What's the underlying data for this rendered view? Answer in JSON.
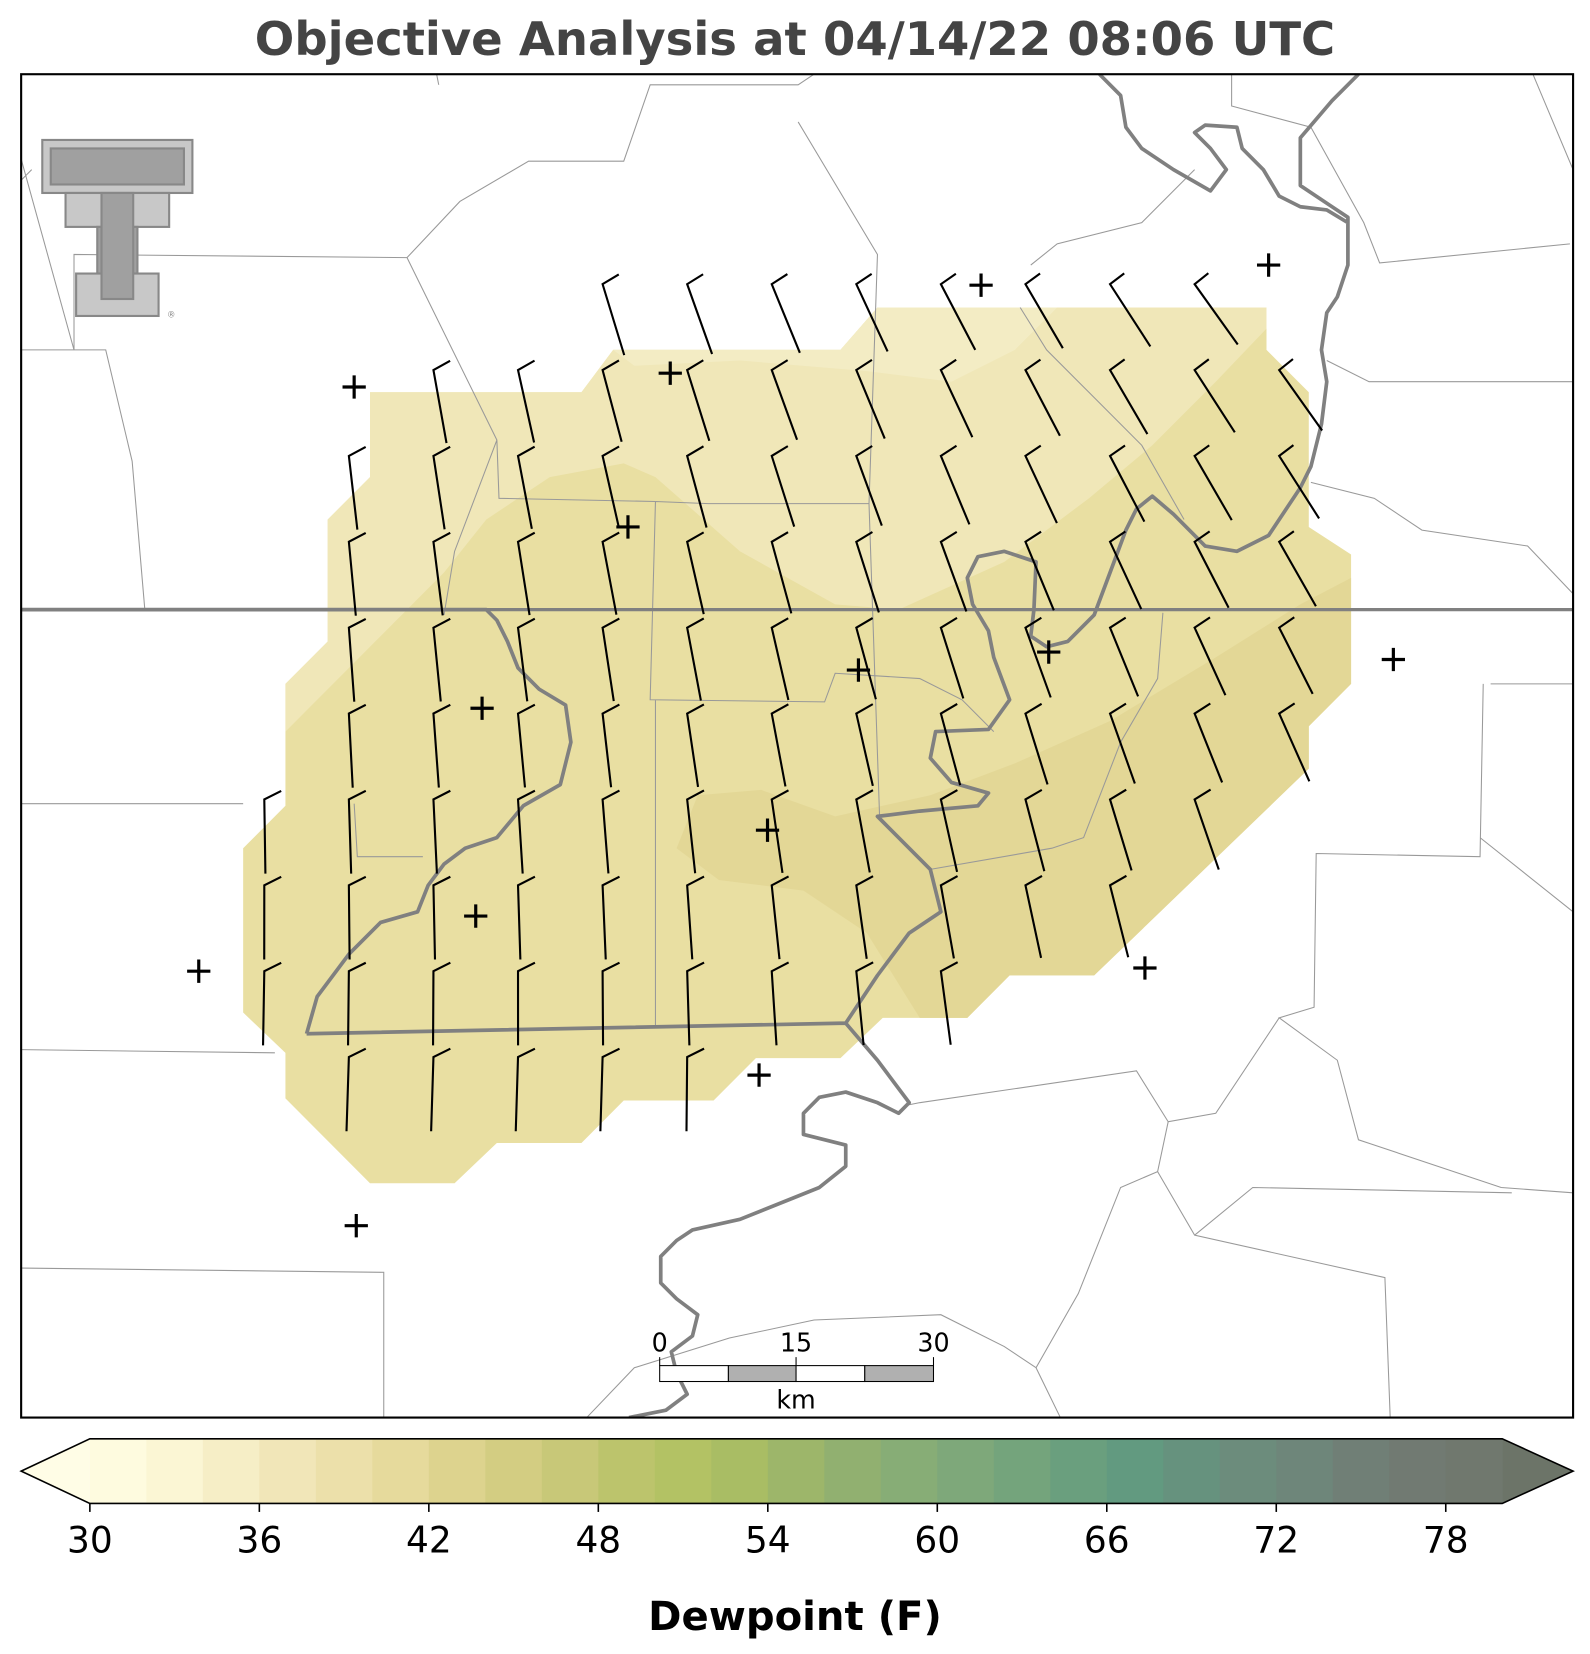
{
  "title": "Objective Analysis at 04/14/22 08:06 UTC",
  "colorbar": {
    "label": "Dewpoint (F)",
    "vmin": 30,
    "vmax": 80,
    "ticks": [
      30,
      36,
      42,
      48,
      54,
      60,
      66,
      72,
      78
    ],
    "colors": [
      "#fefbdf",
      "#fbf6d4",
      "#f6eec6",
      "#f1e6b8",
      "#ece0aa",
      "#e6da9c",
      "#ddd38e",
      "#d3cd82",
      "#c8c878",
      "#bcc46c",
      "#b3c264",
      "#a9bd64",
      "#9db66a",
      "#91b070",
      "#87ad76",
      "#7ea87a",
      "#74a47c",
      "#6a9f7e",
      "#629a80",
      "#66927e",
      "#6c8c7c",
      "#6e867a",
      "#707f76",
      "#717a72",
      "#70786e"
    ],
    "under_color": "#fffde6",
    "over_color": "#6c7468"
  },
  "scale_bar": {
    "ticks": [
      "0",
      "15",
      "30"
    ],
    "unit": "km"
  }
}
